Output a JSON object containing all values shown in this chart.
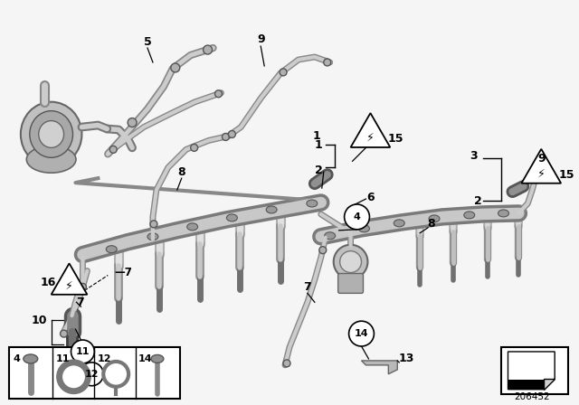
{
  "bg_color": "#f5f5f5",
  "fig_width": 6.4,
  "fig_height": 4.48,
  "dpi": 100,
  "part_number": "206452",
  "rail_color_dark": "#909090",
  "rail_color_mid": "#b8b8b8",
  "rail_color_light": "#d8d8d8",
  "injector_color_dark": "#a0a0a0",
  "injector_color_light": "#d0d0d0",
  "pump_color": "#c0c0c0",
  "line_dark": "#606060",
  "line_light": "#c0c0c0"
}
